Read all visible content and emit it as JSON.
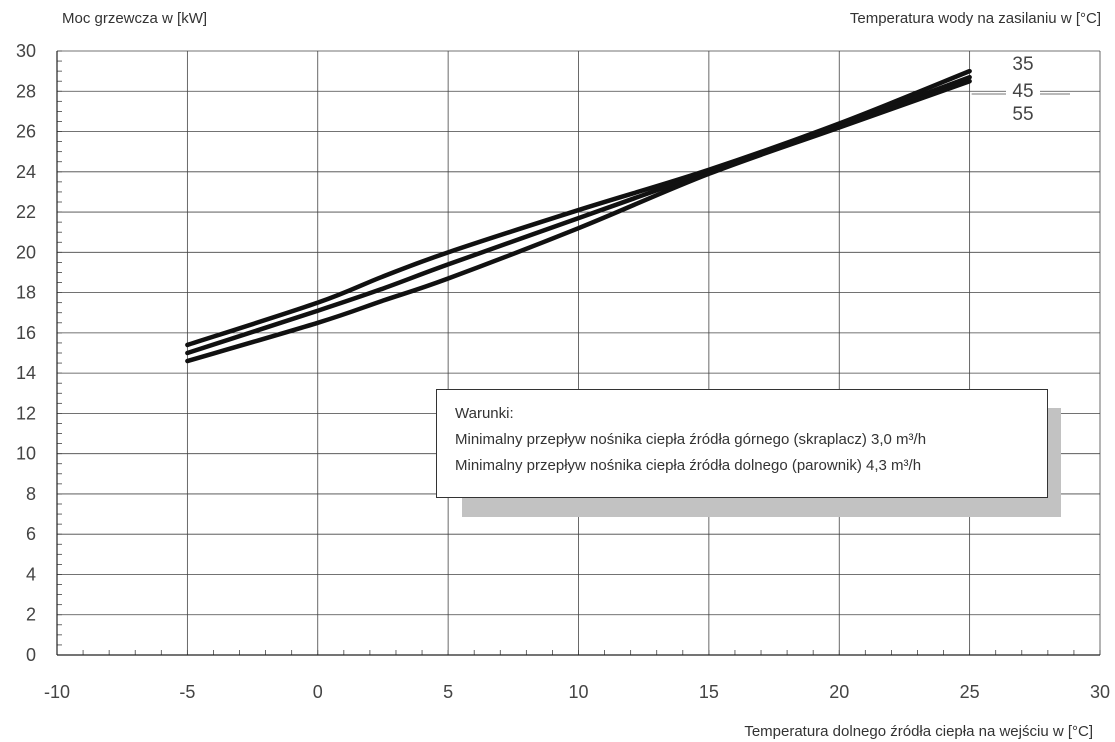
{
  "chart_data": {
    "type": "line",
    "ylabel": "Moc grzewcza w [kW]",
    "xlabel": "Temperatura dolnego źródła ciepła na wejściu w [°C]",
    "legend_title": "Temperatura wody na zasilaniu w [°C]",
    "xlim": [
      -10,
      30
    ],
    "ylim": [
      0,
      30
    ],
    "x_ticks": [
      "-10",
      "-5",
      "0",
      "5",
      "10",
      "15",
      "20",
      "25",
      "30"
    ],
    "y_ticks": [
      "0",
      "2",
      "4",
      "6",
      "8",
      "10",
      "12",
      "14",
      "16",
      "18",
      "20",
      "22",
      "24",
      "26",
      "28",
      "30"
    ],
    "grid": true,
    "series": [
      {
        "name": "35",
        "x": [
          -5,
          0,
          2.5,
          5,
          10,
          15,
          20,
          25
        ],
        "y": [
          15.4,
          17.5,
          18.8,
          20.0,
          22.1,
          24.1,
          26.4,
          29.0
        ]
      },
      {
        "name": "45",
        "x": [
          -5,
          0,
          2.5,
          5,
          10,
          15,
          20,
          25
        ],
        "y": [
          15.0,
          17.1,
          18.2,
          19.4,
          21.7,
          24.0,
          26.3,
          28.7
        ]
      },
      {
        "name": "55",
        "x": [
          -5,
          0,
          2.5,
          5,
          10,
          15,
          20,
          25
        ],
        "y": [
          14.6,
          16.5,
          17.6,
          18.7,
          21.2,
          23.9,
          26.2,
          28.5
        ]
      }
    ],
    "annotation": {
      "title": "Warunki:",
      "lines": [
        "Minimalny przepływ nośnika ciepła źródła górnego (skraplacz) 3,0 m³/h",
        "Minimalny przepływ nośnika ciepła źródła dolnego (parownik) 4,3 m³/h"
      ]
    }
  }
}
